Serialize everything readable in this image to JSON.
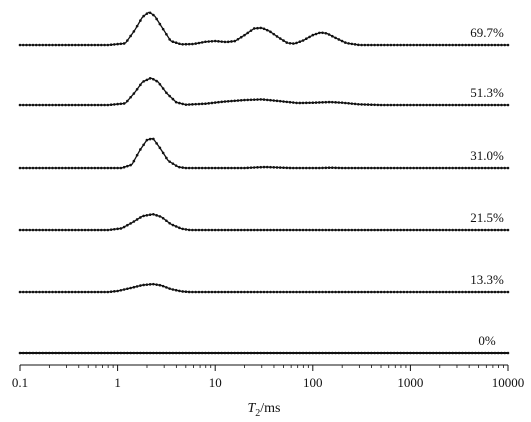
{
  "chart_data": {
    "type": "line",
    "x_scale": "log",
    "xlim": [
      0.1,
      10000
    ],
    "xlabel_main": "T",
    "xlabel_sub": "2",
    "xlabel_unit": "/ms",
    "x_ticks": [
      "0.1",
      "1",
      "10",
      "100",
      "1000",
      "10000"
    ],
    "y_axis_shown": false,
    "grid": false,
    "legend": "none",
    "line_color": "#111111",
    "series": [
      {
        "name": "69.7%",
        "points": [
          [
            0.1,
            0
          ],
          [
            0.8,
            0
          ],
          [
            1.2,
            0.05
          ],
          [
            1.5,
            0.45
          ],
          [
            1.8,
            0.85
          ],
          [
            2.1,
            1.0
          ],
          [
            2.4,
            0.88
          ],
          [
            2.9,
            0.5
          ],
          [
            3.5,
            0.12
          ],
          [
            4.5,
            0.02
          ],
          [
            6,
            0.03
          ],
          [
            8,
            0.1
          ],
          [
            10,
            0.12
          ],
          [
            13,
            0.09
          ],
          [
            16,
            0.12
          ],
          [
            20,
            0.3
          ],
          [
            25,
            0.5
          ],
          [
            30,
            0.52
          ],
          [
            36,
            0.42
          ],
          [
            45,
            0.22
          ],
          [
            55,
            0.06
          ],
          [
            65,
            0.04
          ],
          [
            80,
            0.14
          ],
          [
            100,
            0.3
          ],
          [
            120,
            0.38
          ],
          [
            140,
            0.35
          ],
          [
            170,
            0.22
          ],
          [
            220,
            0.06
          ],
          [
            300,
            0
          ],
          [
            10000,
            0
          ]
        ]
      },
      {
        "name": "51.3%",
        "points": [
          [
            0.1,
            0
          ],
          [
            0.8,
            0
          ],
          [
            1.2,
            0.05
          ],
          [
            1.5,
            0.38
          ],
          [
            1.8,
            0.7
          ],
          [
            2.2,
            0.82
          ],
          [
            2.6,
            0.7
          ],
          [
            3.2,
            0.35
          ],
          [
            4,
            0.08
          ],
          [
            5,
            0.01
          ],
          [
            8,
            0.04
          ],
          [
            12,
            0.1
          ],
          [
            20,
            0.15
          ],
          [
            30,
            0.17
          ],
          [
            45,
            0.12
          ],
          [
            70,
            0.06
          ],
          [
            100,
            0.07
          ],
          [
            150,
            0.09
          ],
          [
            200,
            0.07
          ],
          [
            300,
            0.02
          ],
          [
            500,
            0
          ],
          [
            10000,
            0
          ]
        ]
      },
      {
        "name": "31.0%",
        "points": [
          [
            0.1,
            0
          ],
          [
            1.1,
            0
          ],
          [
            1.4,
            0.1
          ],
          [
            1.7,
            0.55
          ],
          [
            2.0,
            0.85
          ],
          [
            2.3,
            0.9
          ],
          [
            2.7,
            0.62
          ],
          [
            3.3,
            0.22
          ],
          [
            4.2,
            0.03
          ],
          [
            5,
            0
          ],
          [
            20,
            0
          ],
          [
            27,
            0.02
          ],
          [
            33,
            0.03
          ],
          [
            40,
            0.02
          ],
          [
            60,
            0
          ],
          [
            120,
            0
          ],
          [
            150,
            0.01
          ],
          [
            200,
            0
          ],
          [
            10000,
            0
          ]
        ]
      },
      {
        "name": "21.5%",
        "points": [
          [
            0.1,
            0
          ],
          [
            0.8,
            0
          ],
          [
            1.1,
            0.05
          ],
          [
            1.4,
            0.22
          ],
          [
            1.8,
            0.42
          ],
          [
            2.3,
            0.48
          ],
          [
            2.8,
            0.4
          ],
          [
            3.5,
            0.18
          ],
          [
            4.5,
            0.04
          ],
          [
            5.5,
            0
          ],
          [
            10000,
            0
          ]
        ]
      },
      {
        "name": "13.3%",
        "points": [
          [
            0.1,
            0
          ],
          [
            0.8,
            0
          ],
          [
            1.0,
            0.03
          ],
          [
            1.4,
            0.13
          ],
          [
            1.8,
            0.21
          ],
          [
            2.3,
            0.24
          ],
          [
            2.8,
            0.2
          ],
          [
            3.5,
            0.09
          ],
          [
            4.5,
            0.02
          ],
          [
            5.5,
            0
          ],
          [
            10000,
            0
          ]
        ]
      },
      {
        "name": "0%",
        "points": [
          [
            0.1,
            0
          ],
          [
            10000,
            0
          ]
        ]
      }
    ]
  }
}
